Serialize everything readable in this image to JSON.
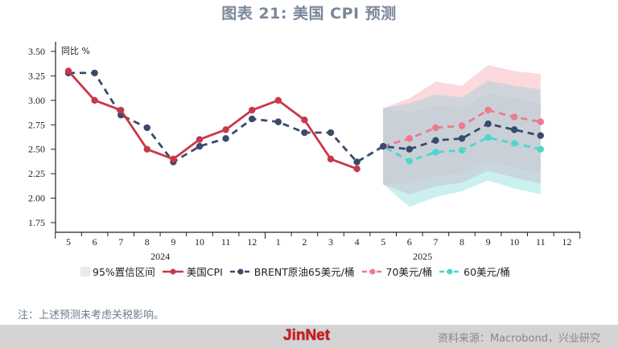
{
  "title": "图表 21: 美国 CPI 预测",
  "note": "注：上述预测未考虑关税影响。",
  "footer": {
    "brand": "JinNet",
    "source": "资料来源：Macrobond，兴业研究"
  },
  "legend": [
    {
      "label": "95%置信区间",
      "color": "#e8eaf2",
      "type": "box"
    },
    {
      "label": "美国CPI",
      "color": "#c8384a",
      "type": "line"
    },
    {
      "label": "BRENT原油65美元/桶",
      "color": "#3b4a6b",
      "type": "dashed"
    },
    {
      "label": "70美元/桶",
      "color": "#ee7a8c",
      "type": "dashed"
    },
    {
      "label": "60美元/桶",
      "color": "#4fd6cc",
      "type": "dashed"
    }
  ],
  "chart_data": {
    "type": "line",
    "title": "图表 21: 美国 CPI 预测",
    "ylabel": "同比 %",
    "xlabel": "",
    "ylim": [
      1.75,
      3.5
    ],
    "yticks": [
      "3.50",
      "3.25",
      "3.00",
      "2.75",
      "2.50",
      "2.25",
      "2.00",
      "1.75"
    ],
    "categories": [
      "5",
      "6",
      "7",
      "8",
      "9",
      "10",
      "11",
      "12",
      "1",
      "2",
      "3",
      "4",
      "5",
      "6",
      "7",
      "8",
      "9",
      "10",
      "11",
      "12"
    ],
    "year_labels": [
      {
        "label": "2024",
        "at_index": 3.5
      },
      {
        "label": "2025",
        "at_index": 13.5
      }
    ],
    "series": [
      {
        "name": "美国CPI",
        "color": "#c8384a",
        "style": "solid",
        "values": [
          3.3,
          3.0,
          2.9,
          2.5,
          2.4,
          2.6,
          2.7,
          2.9,
          3.0,
          2.8,
          2.4,
          2.3,
          null,
          null,
          null,
          null,
          null,
          null,
          null,
          null
        ]
      },
      {
        "name": "BRENT原油65美元/桶",
        "color": "#3b4a6b",
        "style": "dashed",
        "values": [
          3.28,
          3.28,
          2.85,
          2.72,
          2.37,
          2.53,
          2.61,
          2.81,
          2.78,
          2.67,
          2.67,
          2.37,
          2.53,
          2.5,
          2.59,
          2.61,
          2.76,
          2.7,
          2.64,
          null
        ]
      },
      {
        "name": "70美元/桶",
        "color": "#ee7a8c",
        "style": "dashed",
        "values": [
          null,
          null,
          null,
          null,
          null,
          null,
          null,
          null,
          null,
          null,
          null,
          null,
          2.53,
          2.61,
          2.72,
          2.74,
          2.9,
          2.83,
          2.78,
          null
        ]
      },
      {
        "name": "60美元/桶",
        "color": "#4fd6cc",
        "style": "dashed",
        "values": [
          null,
          null,
          null,
          null,
          null,
          null,
          null,
          null,
          null,
          null,
          null,
          2.37,
          2.53,
          2.38,
          2.47,
          2.49,
          2.62,
          2.56,
          2.5,
          null
        ]
      }
    ],
    "confidence_bands": [
      {
        "name": "70美元/桶 95%置信区间",
        "color": "#fcd5d9",
        "start_index": 12,
        "upper": [
          2.92,
          3.02,
          3.19,
          3.15,
          3.36,
          3.3,
          3.27
        ],
        "lower": [
          2.14,
          2.15,
          2.22,
          2.26,
          2.37,
          2.31,
          2.26
        ]
      },
      {
        "name": "65美元/桶 95%置信区间",
        "color": "#c9d2db",
        "start_index": 12,
        "upper": [
          2.92,
          2.97,
          3.06,
          3.03,
          3.2,
          3.15,
          3.11
        ],
        "lower": [
          2.14,
          2.04,
          2.12,
          2.16,
          2.28,
          2.21,
          2.15
        ]
      },
      {
        "name": "60美元/桶 95%置信区间",
        "color": "#c4f0ee",
        "start_index": 12,
        "upper": [
          2.92,
          2.87,
          2.95,
          2.92,
          3.07,
          3.02,
          2.97
        ],
        "lower": [
          2.14,
          1.91,
          2.01,
          2.07,
          2.18,
          2.1,
          2.04
        ]
      }
    ],
    "grid": false,
    "legend_position": "bottom"
  }
}
